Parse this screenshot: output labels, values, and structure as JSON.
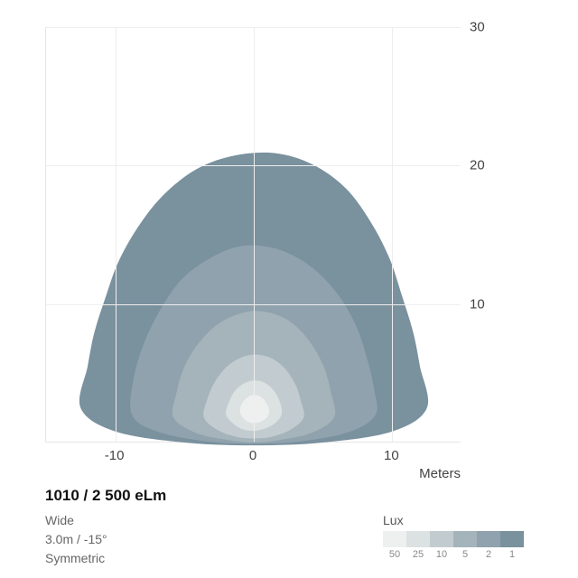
{
  "chart": {
    "type": "isolux-contour",
    "background_color": "#ffffff",
    "grid_color": "#eeeeee",
    "axis_color": "#e6e6e6",
    "tick_fontsize": 15,
    "tick_color": "#444444",
    "x": {
      "min": -15,
      "max": 15,
      "ticks": [
        -10,
        0,
        10
      ],
      "label": "Meters"
    },
    "y": {
      "min": 0,
      "max": 30,
      "ticks": [
        10,
        20,
        30
      ]
    },
    "contours": [
      {
        "lux": 1,
        "color": "#7a919e",
        "points": [
          [
            -12.5,
            2.5
          ],
          [
            -12.0,
            5.5
          ],
          [
            -11.5,
            8.0
          ],
          [
            -10.7,
            10.5
          ],
          [
            -9.8,
            13.0
          ],
          [
            -8.4,
            15.5
          ],
          [
            -6.6,
            17.8
          ],
          [
            -4.2,
            19.7
          ],
          [
            -1.5,
            20.7
          ],
          [
            1.5,
            20.9
          ],
          [
            4.2,
            20.1
          ],
          [
            6.6,
            18.4
          ],
          [
            8.4,
            16.0
          ],
          [
            9.8,
            13.3
          ],
          [
            10.7,
            10.6
          ],
          [
            11.5,
            8.0
          ],
          [
            12.0,
            5.5
          ],
          [
            12.5,
            2.5
          ],
          [
            10.0,
            0.8
          ],
          [
            5.0,
            0.0
          ],
          [
            0.0,
            -0.2
          ],
          [
            -5.0,
            0.0
          ],
          [
            -10.0,
            0.8
          ]
        ]
      },
      {
        "lux": 2,
        "color": "#8fa2ad",
        "points": [
          [
            -8.8,
            2.0
          ],
          [
            -8.7,
            4.5
          ],
          [
            -8.0,
            7.0
          ],
          [
            -6.8,
            9.5
          ],
          [
            -5.2,
            11.8
          ],
          [
            -3.0,
            13.4
          ],
          [
            -0.8,
            14.2
          ],
          [
            1.6,
            14.0
          ],
          [
            4.0,
            12.8
          ],
          [
            6.0,
            10.8
          ],
          [
            7.4,
            8.4
          ],
          [
            8.2,
            6.0
          ],
          [
            8.7,
            3.8
          ],
          [
            8.8,
            2.0
          ],
          [
            7.0,
            0.8
          ],
          [
            3.5,
            0.1
          ],
          [
            0.0,
            -0.1
          ],
          [
            -3.5,
            0.1
          ],
          [
            -7.0,
            0.8
          ]
        ]
      },
      {
        "lux": 5,
        "color": "#a5b3ba",
        "points": [
          [
            -5.8,
            1.8
          ],
          [
            -5.6,
            3.5
          ],
          [
            -5.0,
            5.5
          ],
          [
            -3.8,
            7.4
          ],
          [
            -2.2,
            8.8
          ],
          [
            0.0,
            9.5
          ],
          [
            2.2,
            9.0
          ],
          [
            3.8,
            7.6
          ],
          [
            5.0,
            5.6
          ],
          [
            5.6,
            3.5
          ],
          [
            5.8,
            1.8
          ],
          [
            4.2,
            0.7
          ],
          [
            2.0,
            0.2
          ],
          [
            0.0,
            0.0
          ],
          [
            -2.0,
            0.2
          ],
          [
            -4.2,
            0.7
          ]
        ]
      },
      {
        "lux": 10,
        "color": "#c2ccd0",
        "points": [
          [
            -3.6,
            1.8
          ],
          [
            -3.4,
            3.0
          ],
          [
            -2.8,
            4.4
          ],
          [
            -1.8,
            5.6
          ],
          [
            -0.4,
            6.3
          ],
          [
            1.0,
            6.2
          ],
          [
            2.2,
            5.4
          ],
          [
            3.0,
            4.2
          ],
          [
            3.4,
            3.0
          ],
          [
            3.6,
            1.8
          ],
          [
            2.6,
            0.9
          ],
          [
            1.2,
            0.4
          ],
          [
            0.0,
            0.3
          ],
          [
            -1.2,
            0.4
          ],
          [
            -2.6,
            0.9
          ]
        ]
      },
      {
        "lux": 25,
        "color": "#dce1e2",
        "points": [
          [
            -2.0,
            2.0
          ],
          [
            -1.8,
            2.9
          ],
          [
            -1.3,
            3.8
          ],
          [
            -0.4,
            4.4
          ],
          [
            0.6,
            4.4
          ],
          [
            1.4,
            3.8
          ],
          [
            1.9,
            2.9
          ],
          [
            2.0,
            2.0
          ],
          [
            1.4,
            1.3
          ],
          [
            0.4,
            0.9
          ],
          [
            -0.6,
            0.9
          ],
          [
            -1.4,
            1.3
          ]
        ]
      },
      {
        "lux": 50,
        "color": "#eef0f0",
        "points": [
          [
            -1.0,
            2.2
          ],
          [
            -0.8,
            2.9
          ],
          [
            -0.2,
            3.4
          ],
          [
            0.5,
            3.3
          ],
          [
            1.0,
            2.7
          ],
          [
            1.1,
            2.1
          ],
          [
            0.7,
            1.6
          ],
          [
            0.0,
            1.4
          ],
          [
            -0.6,
            1.6
          ]
        ]
      }
    ]
  },
  "info": {
    "title": "1010 / 2 500 eLm",
    "line1": "Wide",
    "line2": "3.0m / -15°",
    "line3": "Symmetric"
  },
  "legend": {
    "title": "Lux",
    "items": [
      {
        "label": "50",
        "color": "#eef0f0"
      },
      {
        "label": "25",
        "color": "#dce1e2"
      },
      {
        "label": "10",
        "color": "#c2ccd0"
      },
      {
        "label": "5",
        "color": "#a5b3ba"
      },
      {
        "label": "2",
        "color": "#8fa2ad"
      },
      {
        "label": "1",
        "color": "#7a919e"
      }
    ]
  }
}
